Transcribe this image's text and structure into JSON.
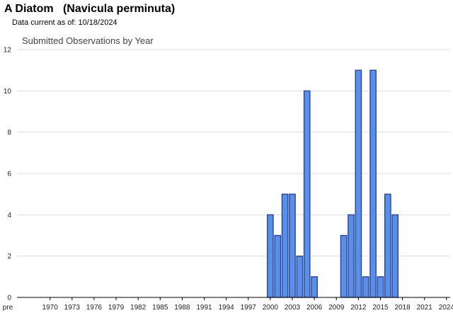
{
  "header": {
    "title": "A Diatom   (Navicula perminuta)",
    "data_current_label": "Data current as of:",
    "data_current_date": "10/18/2024"
  },
  "chart_data": {
    "type": "bar",
    "title": "Submitted Observations by Year",
    "xlabel": "",
    "ylabel": "",
    "ylim": [
      0,
      12
    ],
    "yticks": [
      0,
      2,
      4,
      6,
      8,
      10,
      12
    ],
    "grid": true,
    "legend": "none",
    "bar_color": "#5b8ee6",
    "bar_edge_color": "#1f3f99",
    "x_tick_labels": [
      "pre",
      "1970",
      "1973",
      "1976",
      "1979",
      "1982",
      "1985",
      "1988",
      "1991",
      "1994",
      "1997",
      "2000",
      "2003",
      "2006",
      "2009",
      "2012",
      "2015",
      "2018",
      "2021",
      "2024"
    ],
    "x_range": [
      1966,
      2024
    ],
    "data": [
      {
        "year": 2000,
        "value": 4
      },
      {
        "year": 2001,
        "value": 3
      },
      {
        "year": 2002,
        "value": 5
      },
      {
        "year": 2003,
        "value": 5
      },
      {
        "year": 2004,
        "value": 2
      },
      {
        "year": 2005,
        "value": 10
      },
      {
        "year": 2006,
        "value": 1
      },
      {
        "year": 2010,
        "value": 3
      },
      {
        "year": 2011,
        "value": 4
      },
      {
        "year": 2012,
        "value": 11
      },
      {
        "year": 2013,
        "value": 1
      },
      {
        "year": 2014,
        "value": 11
      },
      {
        "year": 2015,
        "value": 1
      },
      {
        "year": 2016,
        "value": 5
      },
      {
        "year": 2017,
        "value": 4
      }
    ]
  }
}
